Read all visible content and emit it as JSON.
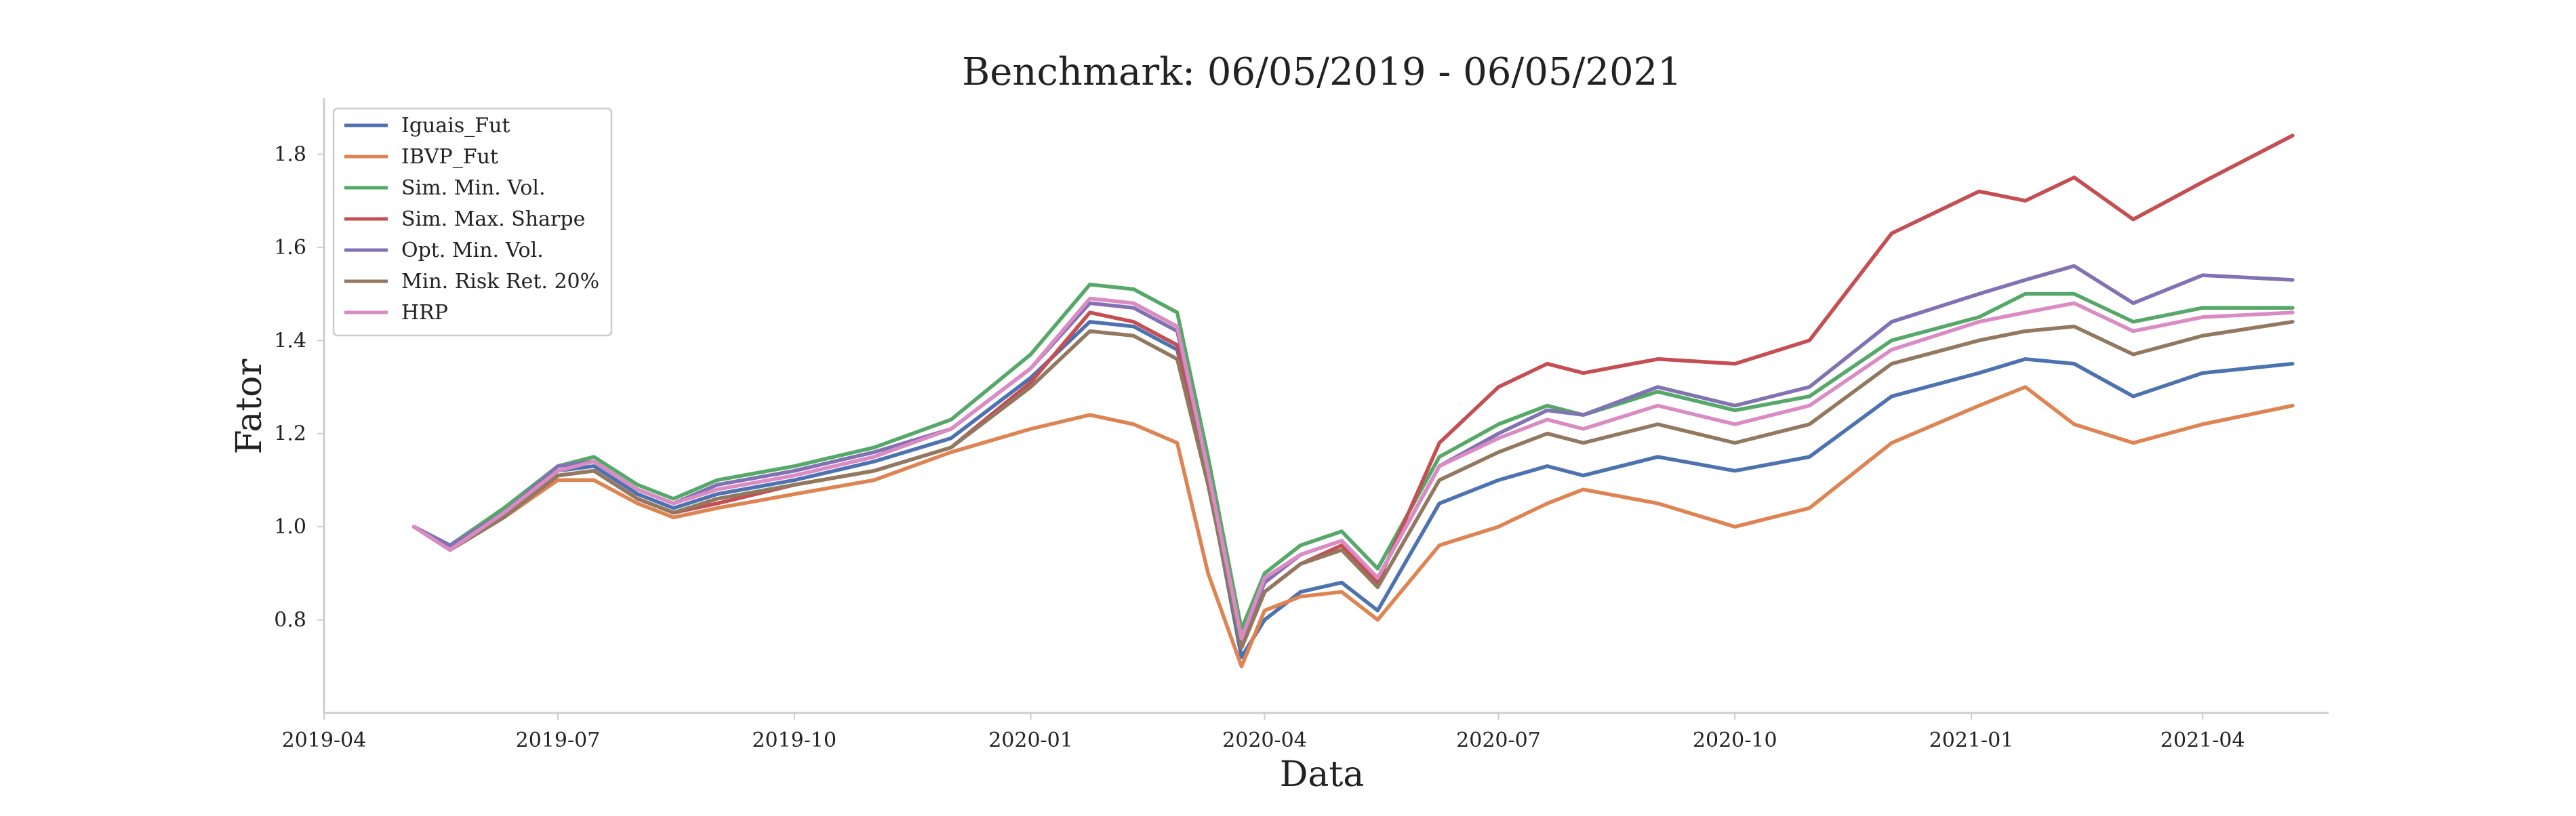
{
  "chart_data": {
    "type": "line",
    "title": "Benchmark: 06/05/2019 - 06/05/2021",
    "xlabel": "Data",
    "ylabel": "Fator",
    "x_ticks": [
      "2019-04",
      "2019-07",
      "2019-10",
      "2020-01",
      "2020-04",
      "2020-07",
      "2020-10",
      "2021-01",
      "2021-04"
    ],
    "y_ticks": [
      "0.8",
      "1.0",
      "1.2",
      "1.4",
      "1.6",
      "1.8"
    ],
    "xlim": [
      "2019-04-01",
      "2021-05-20"
    ],
    "ylim": [
      0.6,
      1.92
    ],
    "grid": false,
    "legend_position": "top-left",
    "x": [
      "2019-05-06",
      "2019-05-20",
      "2019-06-10",
      "2019-07-01",
      "2019-07-15",
      "2019-08-01",
      "2019-08-15",
      "2019-09-01",
      "2019-10-01",
      "2019-11-01",
      "2019-12-01",
      "2020-01-01",
      "2020-01-24",
      "2020-02-10",
      "2020-02-27",
      "2020-03-10",
      "2020-03-23",
      "2020-04-01",
      "2020-04-15",
      "2020-05-01",
      "2020-05-15",
      "2020-06-08",
      "2020-07-01",
      "2020-07-20",
      "2020-08-03",
      "2020-09-01",
      "2020-10-01",
      "2020-10-30",
      "2020-12-01",
      "2021-01-04",
      "2021-01-22",
      "2021-02-10",
      "2021-03-05",
      "2021-04-01",
      "2021-05-06"
    ],
    "series": [
      {
        "name": "Iguais_Fut",
        "color": "#4c72b0",
        "values": [
          1.0,
          0.95,
          1.03,
          1.12,
          1.13,
          1.07,
          1.04,
          1.07,
          1.1,
          1.14,
          1.19,
          1.32,
          1.44,
          1.43,
          1.38,
          1.1,
          0.72,
          0.8,
          0.86,
          0.88,
          0.82,
          1.05,
          1.1,
          1.13,
          1.11,
          1.15,
          1.12,
          1.15,
          1.28,
          1.33,
          1.36,
          1.35,
          1.28,
          1.33,
          1.35
        ]
      },
      {
        "name": "IBVP_Fut",
        "color": "#dd8452",
        "values": [
          1.0,
          0.95,
          1.02,
          1.1,
          1.1,
          1.05,
          1.02,
          1.04,
          1.07,
          1.1,
          1.16,
          1.21,
          1.24,
          1.22,
          1.18,
          0.9,
          0.7,
          0.82,
          0.85,
          0.86,
          0.8,
          0.96,
          1.0,
          1.05,
          1.08,
          1.05,
          1.0,
          1.04,
          1.18,
          1.26,
          1.3,
          1.22,
          1.18,
          1.22,
          1.26
        ]
      },
      {
        "name": "Sim. Min. Vol.",
        "color": "#55a868",
        "values": [
          1.0,
          0.96,
          1.04,
          1.13,
          1.15,
          1.09,
          1.06,
          1.1,
          1.13,
          1.17,
          1.23,
          1.37,
          1.52,
          1.51,
          1.46,
          1.15,
          0.78,
          0.9,
          0.96,
          0.99,
          0.91,
          1.15,
          1.22,
          1.26,
          1.24,
          1.29,
          1.25,
          1.28,
          1.4,
          1.45,
          1.5,
          1.5,
          1.44,
          1.47,
          1.47
        ]
      },
      {
        "name": "Sim. Max. Sharpe",
        "color": "#c44e52",
        "values": [
          1.0,
          0.95,
          1.02,
          1.11,
          1.12,
          1.06,
          1.03,
          1.05,
          1.09,
          1.12,
          1.17,
          1.31,
          1.46,
          1.44,
          1.39,
          1.1,
          0.74,
          0.86,
          0.92,
          0.96,
          0.88,
          1.18,
          1.3,
          1.35,
          1.33,
          1.36,
          1.35,
          1.4,
          1.63,
          1.72,
          1.7,
          1.75,
          1.66,
          1.74,
          1.84
        ]
      },
      {
        "name": "Opt. Min. Vol.",
        "color": "#8172b3",
        "values": [
          1.0,
          0.96,
          1.03,
          1.13,
          1.14,
          1.08,
          1.05,
          1.09,
          1.12,
          1.16,
          1.21,
          1.34,
          1.48,
          1.47,
          1.42,
          1.12,
          0.76,
          0.88,
          0.94,
          0.97,
          0.89,
          1.13,
          1.2,
          1.25,
          1.24,
          1.3,
          1.26,
          1.3,
          1.44,
          1.5,
          1.53,
          1.56,
          1.48,
          1.54,
          1.53
        ]
      },
      {
        "name": "Min. Risk Ret. 20%",
        "color": "#937860",
        "values": [
          1.0,
          0.95,
          1.02,
          1.11,
          1.12,
          1.06,
          1.03,
          1.06,
          1.09,
          1.12,
          1.17,
          1.3,
          1.42,
          1.41,
          1.36,
          1.09,
          0.74,
          0.86,
          0.92,
          0.95,
          0.87,
          1.1,
          1.16,
          1.2,
          1.18,
          1.22,
          1.18,
          1.22,
          1.35,
          1.4,
          1.42,
          1.43,
          1.37,
          1.41,
          1.44
        ]
      },
      {
        "name": "HRP",
        "color": "#da8bc3",
        "values": [
          1.0,
          0.95,
          1.03,
          1.12,
          1.14,
          1.08,
          1.05,
          1.08,
          1.11,
          1.15,
          1.21,
          1.34,
          1.49,
          1.48,
          1.43,
          1.12,
          0.76,
          0.89,
          0.94,
          0.97,
          0.89,
          1.13,
          1.19,
          1.23,
          1.21,
          1.26,
          1.22,
          1.26,
          1.38,
          1.44,
          1.46,
          1.48,
          1.42,
          1.45,
          1.46
        ]
      }
    ]
  }
}
